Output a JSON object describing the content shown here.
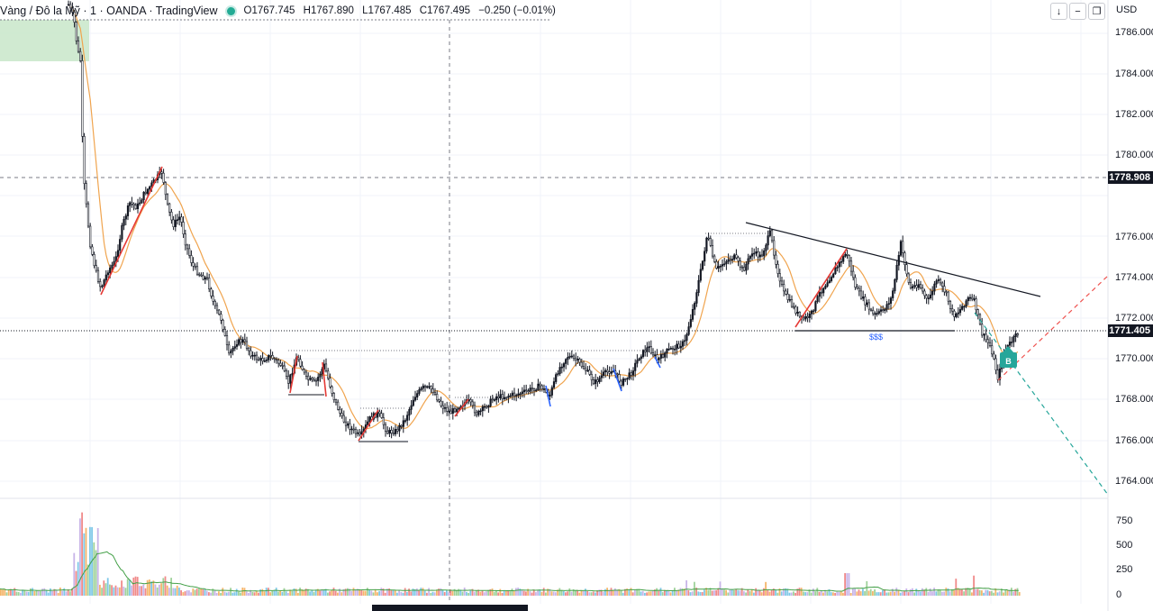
{
  "header": {
    "symbol": "Vàng / Đô la Mỹ · 1 · OANDA · TradingView",
    "ohlc": {
      "open_label": "O",
      "open": "1767.745",
      "high_label": "H",
      "high": "1767.890",
      "low_label": "L",
      "low": "1767.485",
      "close_label": "C",
      "close": "1767.495",
      "change": "−0.250 (−0.01%)"
    },
    "status_color": "#22ab94"
  },
  "toolbar": {
    "down_icon": "arrow-down-icon",
    "minus_icon": "minus-icon",
    "restore_icon": "restore-window-icon",
    "currency": "USD"
  },
  "price_axis": {
    "ticks": [
      "1786.000",
      "1784.000",
      "1782.000",
      "1780.000",
      "1776.000",
      "1774.000",
      "1772.000",
      "1770.000",
      "1768.000",
      "1766.000",
      "1764.000"
    ],
    "crosshair_price": "1778.908",
    "last_price": "1771.405"
  },
  "volume_axis": {
    "ticks": [
      "750",
      "500",
      "250",
      "0"
    ]
  },
  "annotations": {
    "liquidity_label": "$$$",
    "buy_signal": "B"
  },
  "colors": {
    "up": "#131722",
    "ma": "#f0a44e",
    "bull_leg": "#e53935",
    "bear_leg": "#2962ff",
    "signal": "#26a69a",
    "zone": "#c8e6c9"
  }
}
